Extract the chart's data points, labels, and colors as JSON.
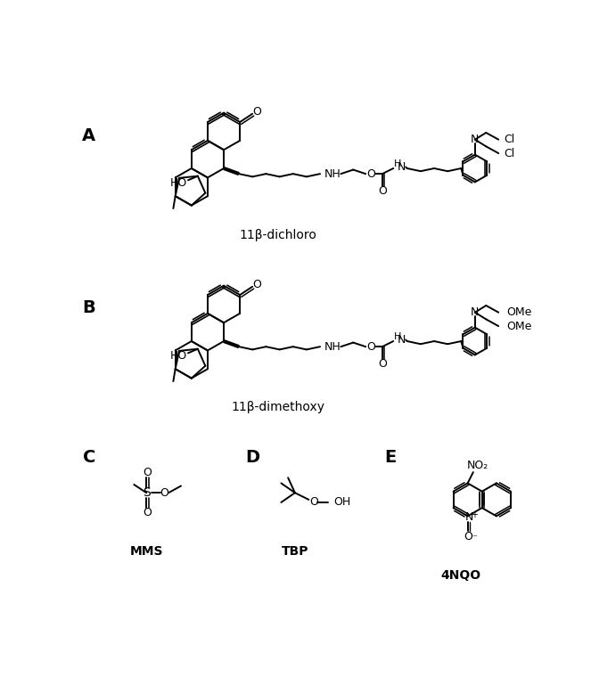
{
  "background_color": "#ffffff",
  "label_A": "A",
  "label_B": "B",
  "label_C": "C",
  "label_D": "D",
  "label_E": "E",
  "name_A": "11β-dichloro",
  "name_B": "11β-dimethoxy",
  "name_C": "MMS",
  "name_D": "TBP",
  "name_E": "4NQO",
  "label_fontsize": 14,
  "name_fontsize": 10,
  "figsize": [
    6.63,
    7.6
  ],
  "dpi": 100
}
